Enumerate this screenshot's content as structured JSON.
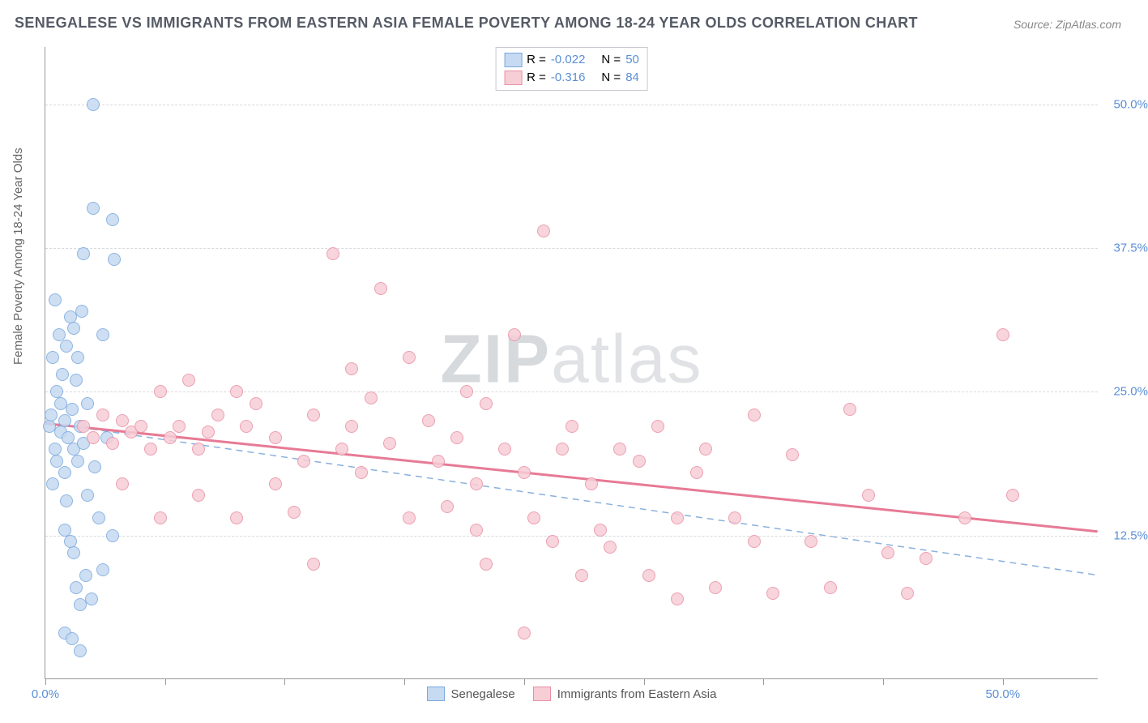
{
  "title": "SENEGALESE VS IMMIGRANTS FROM EASTERN ASIA FEMALE POVERTY AMONG 18-24 YEAR OLDS CORRELATION CHART",
  "source": "Source: ZipAtlas.com",
  "ylabel": "Female Poverty Among 18-24 Year Olds",
  "watermark_a": "ZIP",
  "watermark_b": "atlas",
  "chart": {
    "type": "scatter",
    "xlim": [
      0,
      55
    ],
    "ylim": [
      0,
      55
    ],
    "x_tick_positions": [
      0,
      6.25,
      12.5,
      18.75,
      25,
      31.25,
      37.5,
      43.75,
      50
    ],
    "x_tick_labels": {
      "0": "0.0%",
      "50": "50.0%"
    },
    "y_gridlines": [
      12.5,
      25,
      37.5,
      50
    ],
    "y_tick_labels": {
      "12.5": "12.5%",
      "25": "25.0%",
      "37.5": "37.5%",
      "50": "50.0%"
    },
    "background_color": "#ffffff",
    "grid_color": "#d7d9de",
    "axis_color": "#999999",
    "marker_radius": 8,
    "marker_border_width": 1.5,
    "trend_line_width_solid": 3,
    "trend_line_width_dash": 1.5
  },
  "series": [
    {
      "name": "Senegalese",
      "fill": "#c6daf2",
      "stroke": "#7aa8de",
      "line_style": "dashed",
      "line_color": "#8ab0dd",
      "r_label": "R = ",
      "r_value": "-0.022",
      "n_label": "N = ",
      "n_value": "50",
      "trend": {
        "x1": 0,
        "y1": 22.3,
        "x2": 55,
        "y2": 9.0
      },
      "points": [
        [
          0.2,
          22
        ],
        [
          0.3,
          23
        ],
        [
          0.4,
          28
        ],
        [
          0.5,
          20
        ],
        [
          0.6,
          25
        ],
        [
          0.6,
          19
        ],
        [
          0.7,
          30
        ],
        [
          0.8,
          21.5
        ],
        [
          0.8,
          24
        ],
        [
          0.9,
          26.5
        ],
        [
          1.0,
          18
        ],
        [
          1.0,
          22.5
        ],
        [
          1.1,
          29
        ],
        [
          1.2,
          21
        ],
        [
          1.3,
          31.5
        ],
        [
          1.4,
          23.5
        ],
        [
          1.5,
          20
        ],
        [
          1.5,
          30.5
        ],
        [
          1.6,
          26
        ],
        [
          1.7,
          19
        ],
        [
          1.7,
          28
        ],
        [
          1.8,
          22
        ],
        [
          2.0,
          20.5
        ],
        [
          2.0,
          37
        ],
        [
          2.2,
          16
        ],
        [
          2.2,
          24
        ],
        [
          2.5,
          41
        ],
        [
          2.5,
          50
        ],
        [
          2.6,
          18.5
        ],
        [
          2.8,
          14
        ],
        [
          3.0,
          30
        ],
        [
          3.2,
          21
        ],
        [
          3.5,
          40
        ],
        [
          3.6,
          36.5
        ],
        [
          1.0,
          13
        ],
        [
          1.1,
          15.5
        ],
        [
          1.3,
          12
        ],
        [
          1.5,
          11
        ],
        [
          1.6,
          8
        ],
        [
          1.8,
          6.5
        ],
        [
          2.1,
          9
        ],
        [
          2.4,
          7
        ],
        [
          3.0,
          9.5
        ],
        [
          3.5,
          12.5
        ],
        [
          1.0,
          4
        ],
        [
          1.4,
          3.5
        ],
        [
          1.8,
          2.5
        ],
        [
          0.5,
          33
        ],
        [
          1.9,
          32
        ],
        [
          0.4,
          17
        ]
      ]
    },
    {
      "name": "Immigrants from Eastern Asia",
      "fill": "#f7cdd6",
      "stroke": "#e890a4",
      "line_style": "solid",
      "line_color": "#e77a95",
      "r_label": "R = ",
      "r_value": "-0.316",
      "n_label": "N = ",
      "n_value": "84",
      "trend": {
        "x1": 0,
        "y1": 22.2,
        "x2": 55,
        "y2": 12.8
      },
      "points": [
        [
          2,
          22
        ],
        [
          2.5,
          21
        ],
        [
          3,
          23
        ],
        [
          3.5,
          20.5
        ],
        [
          4,
          22.5
        ],
        [
          4.5,
          21.5
        ],
        [
          5,
          22
        ],
        [
          5.5,
          20
        ],
        [
          6,
          25
        ],
        [
          6.5,
          21
        ],
        [
          7,
          22
        ],
        [
          7.5,
          26
        ],
        [
          8,
          20
        ],
        [
          8.5,
          21.5
        ],
        [
          9,
          23
        ],
        [
          10,
          25
        ],
        [
          10.5,
          22
        ],
        [
          11,
          24
        ],
        [
          12,
          17
        ],
        [
          12,
          21
        ],
        [
          13,
          14.5
        ],
        [
          13.5,
          19
        ],
        [
          14,
          23
        ],
        [
          15,
          37
        ],
        [
          15.5,
          20
        ],
        [
          16,
          22
        ],
        [
          16.5,
          18
        ],
        [
          17,
          24.5
        ],
        [
          17.5,
          34
        ],
        [
          18,
          20.5
        ],
        [
          19,
          14
        ],
        [
          19,
          28
        ],
        [
          20,
          22.5
        ],
        [
          20.5,
          19
        ],
        [
          21,
          15
        ],
        [
          21.5,
          21
        ],
        [
          22,
          25
        ],
        [
          22.5,
          17
        ],
        [
          22.5,
          13
        ],
        [
          23,
          10
        ],
        [
          23,
          24
        ],
        [
          24,
          20
        ],
        [
          24.5,
          30
        ],
        [
          25,
          18
        ],
        [
          25.5,
          14
        ],
        [
          26,
          39
        ],
        [
          26.5,
          12
        ],
        [
          27,
          20
        ],
        [
          27.5,
          22
        ],
        [
          28,
          9
        ],
        [
          28.5,
          17
        ],
        [
          29,
          13
        ],
        [
          29.5,
          11.5
        ],
        [
          30,
          20
        ],
        [
          31,
          19
        ],
        [
          31.5,
          9
        ],
        [
          32,
          22
        ],
        [
          33,
          14
        ],
        [
          34,
          18
        ],
        [
          34.5,
          20
        ],
        [
          35,
          8
        ],
        [
          36,
          14
        ],
        [
          37,
          12
        ],
        [
          37,
          23
        ],
        [
          38,
          7.5
        ],
        [
          39,
          19.5
        ],
        [
          40,
          12
        ],
        [
          41,
          8
        ],
        [
          42,
          23.5
        ],
        [
          43,
          16
        ],
        [
          44,
          11
        ],
        [
          45,
          7.5
        ],
        [
          46,
          10.5
        ],
        [
          48,
          14
        ],
        [
          50,
          30
        ],
        [
          50.5,
          16
        ],
        [
          10,
          14
        ],
        [
          8,
          16
        ],
        [
          6,
          14
        ],
        [
          4,
          17
        ],
        [
          25,
          4
        ],
        [
          14,
          10
        ],
        [
          16,
          27
        ],
        [
          33,
          7
        ]
      ]
    }
  ]
}
